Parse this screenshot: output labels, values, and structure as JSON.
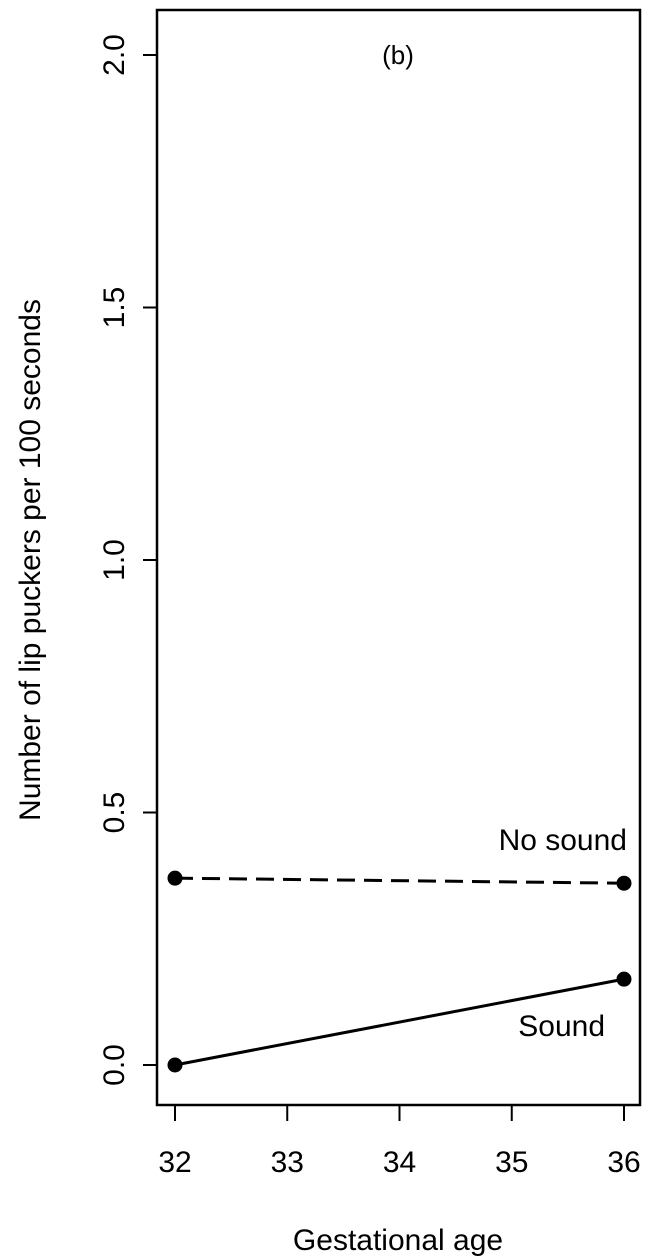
{
  "chart_data": {
    "type": "line",
    "panel_label": "(b)",
    "xlabel": "Gestational age",
    "ylabel": "Number of lip puckers per 100 seconds",
    "xlim": [
      32,
      36
    ],
    "ylim": [
      0.0,
      2.0
    ],
    "x_ticks": [
      32,
      33,
      34,
      35,
      36
    ],
    "x_tick_labels": [
      "32",
      "33",
      "34",
      "35",
      "36"
    ],
    "y_ticks": [
      0.0,
      0.5,
      1.0,
      1.5,
      2.0
    ],
    "y_tick_labels": [
      "0.0",
      "0.5",
      "1.0",
      "1.5",
      "2.0"
    ],
    "grid": false,
    "legend": "none",
    "series": [
      {
        "name": "No sound",
        "style": "dashed",
        "color": "#000000",
        "x": [
          32,
          36
        ],
        "y": [
          0.37,
          0.36
        ]
      },
      {
        "name": "Sound",
        "style": "solid",
        "color": "#000000",
        "x": [
          32,
          36
        ],
        "y": [
          0.0,
          0.17
        ]
      }
    ]
  }
}
